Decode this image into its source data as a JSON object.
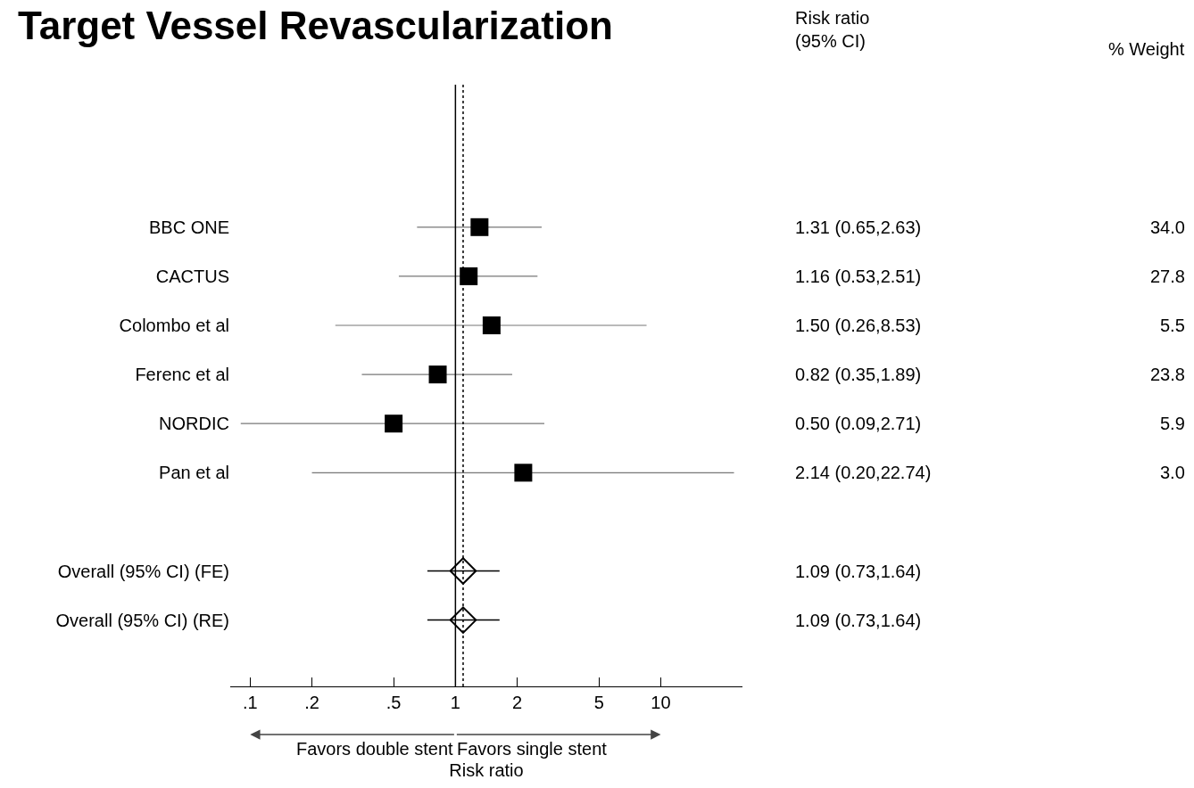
{
  "chart_data": {
    "type": "scatter",
    "orientation": "horizontal",
    "title": "Target Vessel Revascularization",
    "xlabel": "Risk ratio",
    "categories": [
      "BBC ONE",
      "CACTUS",
      "Colombo et al",
      "Ferenc et al",
      "NORDIC",
      "Pan et al",
      null,
      "Overall (95% CI) (FE)",
      "Overall (95% CI) (RE)"
    ],
    "series": [
      {
        "marker": "square",
        "color": "#000000",
        "values": [
          1.31,
          1.16,
          1.5,
          0.82,
          0.5,
          2.14,
          null,
          null,
          null
        ],
        "errors": [
          [
            0.65,
            2.63
          ],
          [
            0.53,
            2.51
          ],
          [
            0.26,
            8.53
          ],
          [
            0.35,
            1.89
          ],
          [
            0.09,
            2.71
          ],
          [
            0.2,
            22.74
          ],
          null,
          null,
          null
        ]
      },
      {
        "marker": "diamond",
        "color": "#000000",
        "values": [
          null,
          null,
          null,
          null,
          null,
          null,
          null,
          1.09,
          1.09
        ],
        "errors": [
          null,
          null,
          null,
          null,
          null,
          null,
          null,
          [
            0.73,
            1.64
          ],
          [
            0.73,
            1.64
          ]
        ]
      }
    ],
    "log": "x",
    "xlim": [
      0.08,
      25
    ],
    "xticks": [
      {
        "value": 0.1,
        "label": ".1"
      },
      {
        "value": 0.2,
        "label": ".2"
      },
      {
        "value": 0.5,
        "label": ".5"
      },
      1,
      2,
      5,
      10
    ],
    "ref_lines": [
      {
        "axis": "x",
        "value": 1,
        "line_style": "solid",
        "color": "#000000"
      },
      {
        "axis": "x",
        "value": 1.09,
        "line_style": "dotted",
        "color": "#000000"
      }
    ],
    "annotations": [
      "Risk ratio\n(95% CI)",
      "% Weight",
      "Favors double stent",
      "Favors single stent",
      "1.31 (0.65,2.63)",
      "1.16 (0.53,2.51)",
      "1.50 (0.26,8.53)",
      "0.82 (0.35,1.89)",
      "0.50 (0.09,2.71)",
      "2.14 (0.20,22.74)",
      "1.09 (0.73,1.64)",
      "1.09 (0.73,1.64)",
      "34.0",
      "27.8",
      "5.5",
      "23.8",
      "5.9",
      "3.0"
    ],
    "grid": false
  }
}
